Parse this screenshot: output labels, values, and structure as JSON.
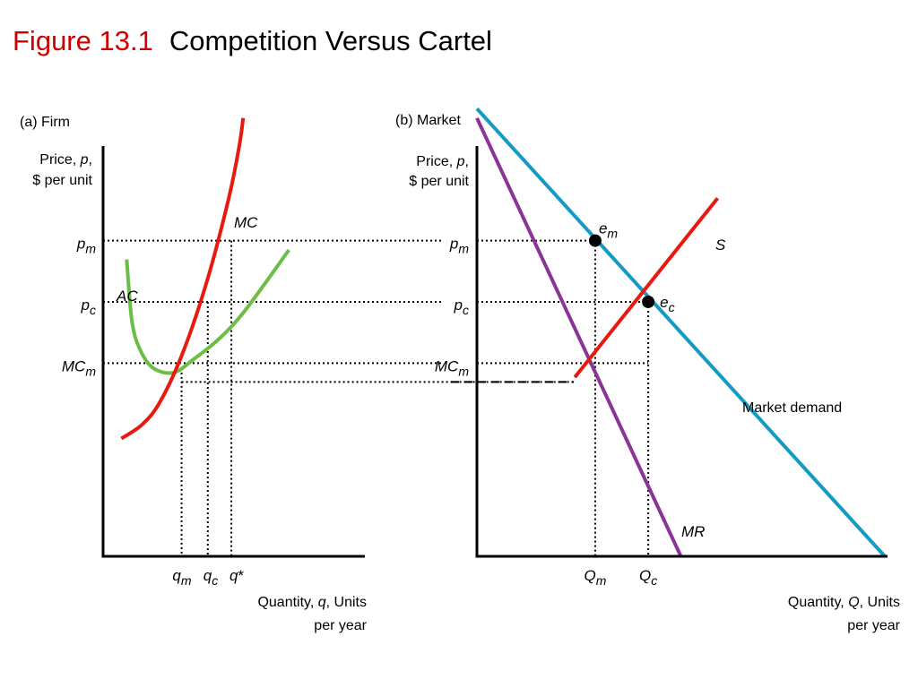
{
  "title": {
    "figure": "Figure 13.1",
    "text": "Competition Versus Cartel"
  },
  "colors": {
    "mc": "#e8190f",
    "ac": "#6cbd45",
    "demand": "#149bc5",
    "mr": "#8a3596",
    "supply": "#e8190f",
    "title_accent": "#cc0000"
  },
  "chart_data": [
    {
      "type": "line",
      "panel": "(a) Firm",
      "ylabel": {
        "line1_pre": "Price, ",
        "var": "p",
        "line1_post": ",",
        "line2": "$ per unit"
      },
      "xlabel": {
        "line1_pre": "Quantity, ",
        "var": "q",
        "line1_post": ", Units",
        "line2": "per year"
      },
      "xlim": [
        0,
        100
      ],
      "ylim": [
        0,
        100
      ],
      "series": [
        {
          "name": "MC",
          "points": [
            [
              7,
              25
            ],
            [
              15,
              28
            ],
            [
              22,
              33
            ],
            [
              31,
              44
            ],
            [
              40,
              59
            ],
            [
              48,
              76
            ],
            [
              52,
              87
            ],
            [
              53.5,
              93
            ]
          ]
        },
        {
          "name": "AC",
          "points": [
            [
              9,
              63
            ],
            [
              11,
              50
            ],
            [
              14,
              44
            ],
            [
              19,
              40
            ],
            [
              27,
              39
            ],
            [
              35,
              42
            ],
            [
              44,
              46
            ],
            [
              54,
              52
            ],
            [
              71,
              65
            ]
          ]
        }
      ],
      "price_levels": [
        {
          "base": "p",
          "sub": "m",
          "value": 67
        },
        {
          "base": "p",
          "sub": "c",
          "value": 54
        },
        {
          "base": "MC",
          "sub": "m",
          "value": 41
        }
      ],
      "floor_level": 37,
      "quantities": [
        {
          "base": "q",
          "sub": "m",
          "value": 30,
          "y": 39
        },
        {
          "base": "q",
          "sub": "c",
          "value": 40,
          "y": 54
        },
        {
          "base": "q",
          "sub": "",
          "star": "*",
          "value": 49,
          "y": 67
        }
      ]
    },
    {
      "type": "line",
      "panel": "(b) Market",
      "ylabel": {
        "line1_pre": "Price, ",
        "var": "p",
        "line1_post": ",",
        "line2": "$ per unit"
      },
      "xlabel": {
        "line1_pre": "Quantity, ",
        "var": "Q",
        "line1_post": ", Units",
        "line2": "per year"
      },
      "xlim": [
        0,
        100
      ],
      "ylim": [
        0,
        100
      ],
      "series": [
        {
          "name": "Market demand",
          "points": [
            [
              0,
              95
            ],
            [
              100,
              0
            ]
          ]
        },
        {
          "name": "MR",
          "points": [
            [
              0,
              93
            ],
            [
              50,
              0
            ]
          ]
        },
        {
          "name": "S",
          "points": [
            [
              24,
              38
            ],
            [
              59,
              76
            ]
          ]
        }
      ],
      "price_levels": [
        {
          "base": "p",
          "sub": "m",
          "value": 67
        },
        {
          "base": "p",
          "sub": "c",
          "value": 54
        },
        {
          "base": "MC",
          "sub": "m",
          "value": 41
        }
      ],
      "dashed_level": 37,
      "quantities": [
        {
          "base": "Q",
          "sub": "m",
          "value": 29,
          "y": 67
        },
        {
          "base": "Q",
          "sub": "c",
          "value": 42,
          "y": 54
        }
      ],
      "points": [
        {
          "base": "e",
          "sub": "m",
          "x": 29,
          "y": 67
        },
        {
          "base": "e",
          "sub": "c",
          "x": 42,
          "y": 54
        }
      ]
    }
  ]
}
